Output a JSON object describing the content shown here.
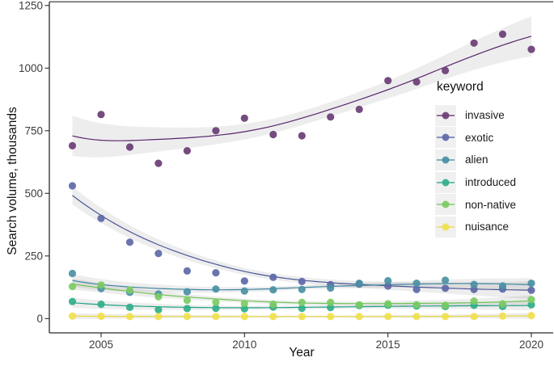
{
  "figure": {
    "background": "#ffffff",
    "axis_color": "#2b2b2b",
    "tick_label_color": "#3c3c3c"
  },
  "chart_data": {
    "type": "scatter",
    "subtype": "scatter-with-loess-smooth-and-ci",
    "title": "",
    "xlabel": "Year",
    "ylabel": "Search volume, thousands",
    "legend_title": "keyword",
    "legend_position": "inside-right",
    "grid": false,
    "x": [
      2004,
      2005,
      2006,
      2007,
      2008,
      2009,
      2010,
      2011,
      2012,
      2013,
      2014,
      2015,
      2016,
      2017,
      2018,
      2019,
      2020
    ],
    "x_ticks": [
      2005,
      2010,
      2015,
      2020
    ],
    "y_ticks": [
      0,
      250,
      500,
      750,
      1000,
      1250
    ],
    "xlim": [
      2003.2,
      2020.8
    ],
    "ylim": [
      0,
      1250
    ],
    "band_color": "rgba(0,0,0,0.072)",
    "legend_key_bg": "#f0f0f0",
    "series": [
      {
        "name": "invasive",
        "color": "#6a3d75",
        "line_color": "#59256b",
        "ci_halfwidth": 40,
        "values": [
          690,
          815,
          685,
          620,
          670,
          750,
          800,
          735,
          730,
          805,
          835,
          950,
          945,
          990,
          1100,
          1135,
          1075
        ]
      },
      {
        "name": "exotic",
        "color": "#5d68a8",
        "line_color": "#4c5799",
        "ci_halfwidth": 18,
        "values": [
          530,
          400,
          305,
          260,
          190,
          183,
          150,
          165,
          148,
          135,
          137,
          130,
          116,
          121,
          116,
          118,
          113
        ]
      },
      {
        "name": "alien",
        "color": "#4a90a4",
        "line_color": "#3e85a0",
        "ci_halfwidth": 13,
        "values": [
          180,
          120,
          105,
          98,
          107,
          118,
          110,
          115,
          116,
          122,
          141,
          151,
          141,
          153,
          136,
          130,
          141
        ]
      },
      {
        "name": "introduced",
        "color": "#31ae8a",
        "line_color": "#21a187",
        "ci_halfwidth": 10,
        "values": [
          68,
          57,
          45,
          35,
          40,
          41,
          39,
          46,
          41,
          44,
          52,
          53,
          50,
          48,
          53,
          48,
          55
        ]
      },
      {
        "name": "non-native",
        "color": "#7ccb63",
        "line_color": "#6fc453",
        "ci_halfwidth": 11,
        "values": [
          128,
          134,
          114,
          87,
          73,
          65,
          60,
          57,
          65,
          65,
          55,
          59,
          55,
          53,
          70,
          59,
          76
        ]
      },
      {
        "name": "nuisance",
        "color": "#f0e04f",
        "line_color": "#e8d83b",
        "ci_halfwidth": 6,
        "values": [
          10,
          9,
          8,
          8,
          8,
          8,
          8,
          8,
          8,
          8,
          8,
          8,
          8,
          8,
          8,
          10,
          12
        ]
      }
    ]
  }
}
